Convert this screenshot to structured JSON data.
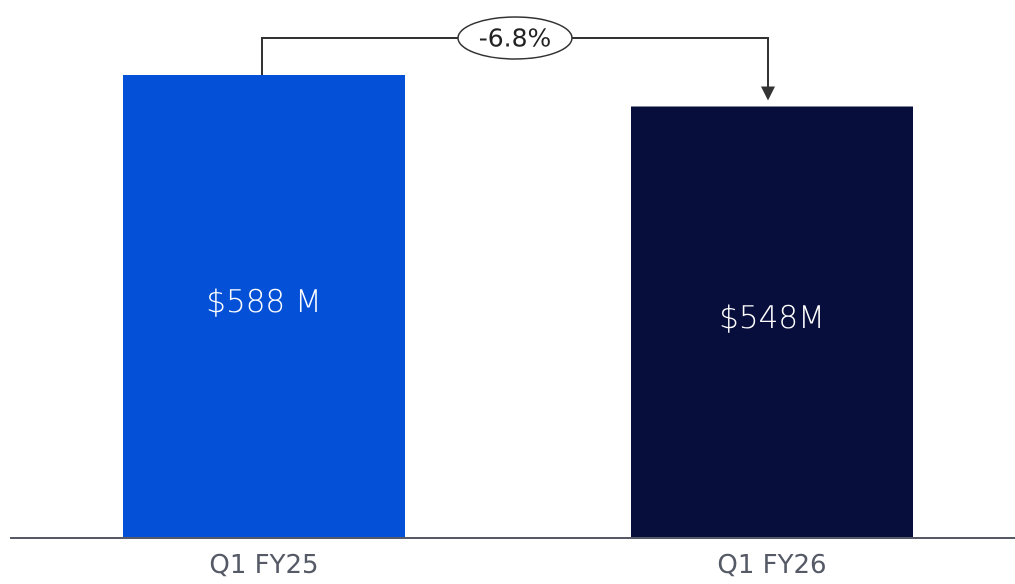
{
  "chart_data": {
    "type": "bar",
    "categories": [
      "Q1 FY25",
      "Q1 FY26"
    ],
    "values": [
      588,
      548
    ],
    "data_labels": [
      "$588 M",
      "$548M"
    ],
    "bar_colors": [
      "#0450d6",
      "#080e3b"
    ],
    "change_label": "-6.8%",
    "ylim": [
      0,
      640
    ],
    "grid": false,
    "legend": "none"
  }
}
